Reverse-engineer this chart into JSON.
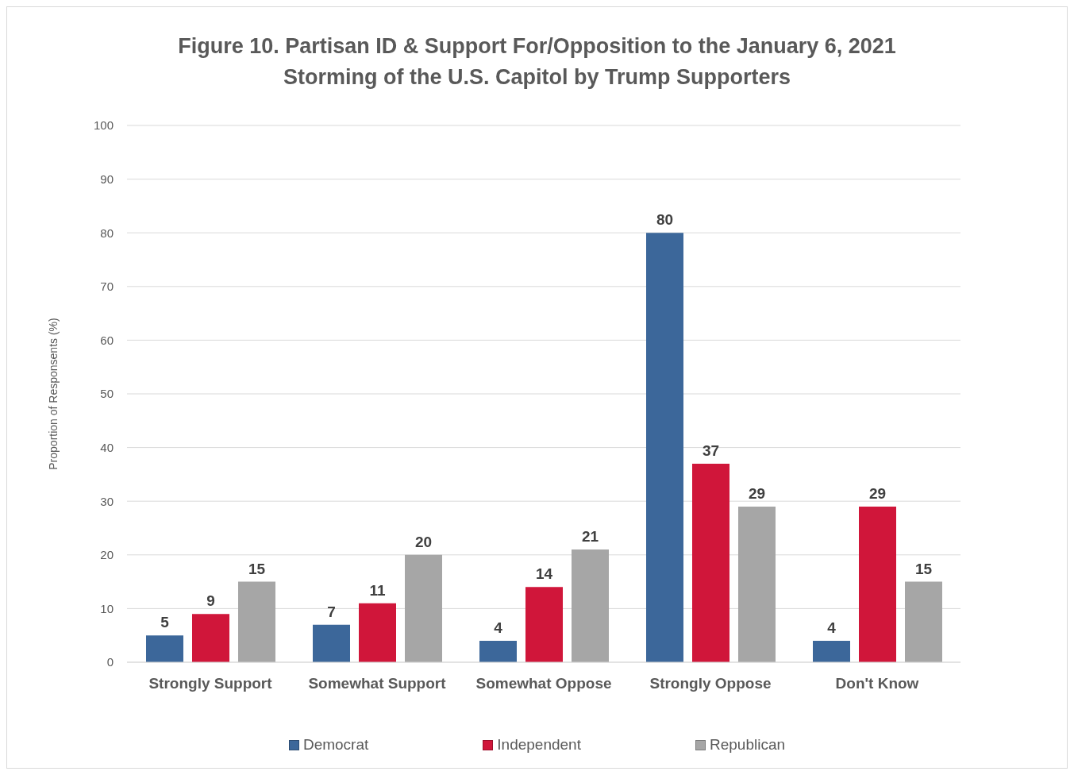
{
  "chart_data": {
    "type": "bar",
    "title": "Figure 10. Partisan ID & Support For/Opposition to the January 6, 2021 Storming of the U.S. Capitol by Trump Supporters",
    "ylabel": "Proportion of Responsents (%)",
    "categories": [
      "Strongly Support",
      "Somewhat Support",
      "Somewhat Oppose",
      "Strongly Oppose",
      "Don't Know"
    ],
    "series": [
      {
        "name": "Democrat",
        "color": "#3c679a",
        "values": [
          5,
          7,
          4,
          80,
          4
        ]
      },
      {
        "name": "Independent",
        "color": "#d0163a",
        "values": [
          9,
          11,
          14,
          37,
          29
        ]
      },
      {
        "name": "Republican",
        "color": "#a6a6a6",
        "values": [
          15,
          20,
          21,
          29,
          15
        ]
      }
    ],
    "ylim": [
      0,
      100
    ],
    "yticks": [
      0,
      10,
      20,
      30,
      40,
      50,
      60,
      70,
      80,
      90,
      100
    ],
    "grid": "y",
    "legend": "bottom",
    "data_labels": true
  }
}
